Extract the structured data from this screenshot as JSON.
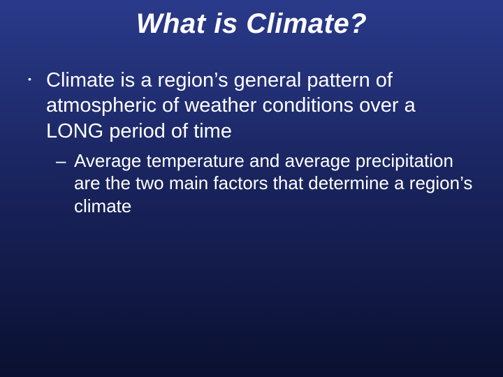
{
  "slide": {
    "title": "What is Climate?",
    "bullets": [
      {
        "level": 1,
        "text": "Climate is a region’s general pattern of atmospheric of weather conditions over a LONG period of time"
      },
      {
        "level": 2,
        "text": "Average temperature and average precipitation are the two main factors that determine a region’s climate"
      }
    ],
    "style": {
      "title_fontsize": 40,
      "l1_fontsize": 29,
      "l2_fontsize": 26,
      "text_color": "#ffffff",
      "background_gradient_top": "#2a3a8a",
      "background_gradient_mid": "#1a2560",
      "background_gradient_bottom": "#0a1030",
      "l1_marker": "•",
      "l2_marker": "–"
    }
  }
}
